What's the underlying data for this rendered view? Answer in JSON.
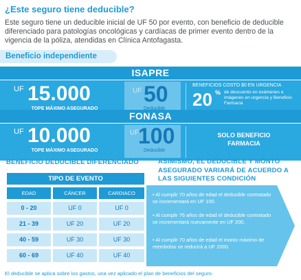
{
  "intro": {
    "title": "¿Este seguro tiene deducible?",
    "body": "Este seguro tiene un deducible inicial de UF 50 por evento, con beneficio de deducible diferenciado para patologías oncológicas y cardíacas de primer evento dentro de la vigencia de la póliza, atendidas en Clínica Antofagasta."
  },
  "benefit_label": "Beneficio independiente",
  "isapre": {
    "header": "ISAPRE",
    "uf": "UF",
    "tope_value": "15.000",
    "tope_label": "TOPE MÁXIMO ASEGURADO",
    "ded_uf": "UF",
    "ded_value": "50",
    "ded_label": "Deducible",
    "benefit_title": "BENEFICIOS COSTO $0 EN URGENCIA",
    "discount_number": "20",
    "discount_symbol": "%",
    "discount_text": "de descuento en exámenes e imágenes en urgencia y Beneficio Farmacia"
  },
  "fonasa": {
    "header": "FONASA",
    "uf": "UF",
    "tope_value": "10.000",
    "tope_label": "TOPE MÁXIMO ASEGURADO",
    "ded_uf": "UF",
    "ded_value": "100",
    "ded_label": "Deducible",
    "benefit_line1": "SOLO BENEFICIO",
    "benefit_line2": "FARMACIA"
  },
  "diferenciado": {
    "title": "BENEFICIO DEDUCIBLE DIFERENCIADO",
    "tipo_header": "TIPO DE EVENTO",
    "columns": [
      "EDAD",
      "CÁNCER",
      "CARDIACO"
    ],
    "rows": [
      [
        "0 - 20",
        "UF 0",
        "UF 0"
      ],
      [
        "21 - 39",
        "UF 20",
        "UF 20"
      ],
      [
        "40 - 59",
        "UF 30",
        "UF 30"
      ],
      [
        "60 - 69",
        "UF 40",
        "UF 40"
      ]
    ]
  },
  "condiciones": {
    "title": "ASIMISMO, EL DEDUCIBLE Y MONTO ASEGURADO VARIARÁ DE ACUERDO A LAS SIGUIENTES CONDICIÓN",
    "bullets": [
      "• Al cumplir 70 años de edad el deducible contratado se incrementará en UF 100.",
      "• Al cumplir 76 años de edad el deducible contratado se incrementará nuevamente en UF 200.",
      "• Al cumplir 70 años de edad el monto máximo de reembolso se reducirá a UF 2000."
    ]
  },
  "footer": "El deducible se aplica sobre los gastos, una vez aplicado el plan de beneficios del seguro."
}
